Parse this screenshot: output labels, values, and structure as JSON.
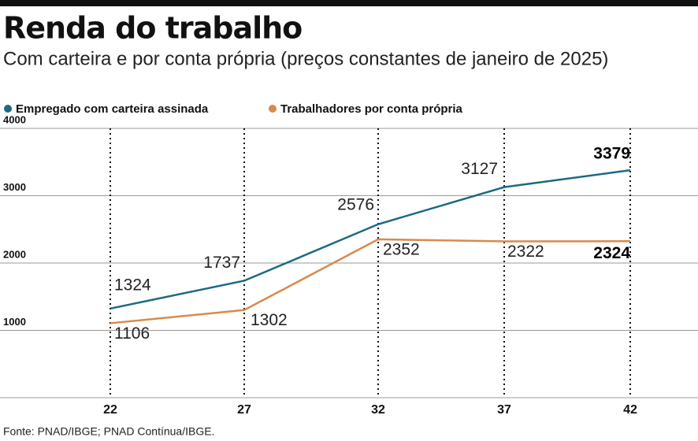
{
  "chart_data": {
    "type": "line",
    "title": "Renda do trabalho",
    "subtitle": "Com carteira e por conta própria (preços constantes de janeiro de 2025)",
    "categories": [
      "22",
      "27",
      "32",
      "37",
      "42"
    ],
    "series": [
      {
        "name": "Empregado com carteira assinada",
        "color": "#1b6a84",
        "values": [
          1324,
          1737,
          2576,
          3127,
          3379
        ]
      },
      {
        "name": "Trabalhadores por conta própria",
        "color": "#d88a4c",
        "values": [
          1106,
          1302,
          2352,
          2322,
          2324
        ]
      }
    ],
    "ylim": [
      0,
      4000
    ],
    "yticks": [
      1000,
      2000,
      3000,
      4000
    ],
    "grid": true,
    "source": "Fonte: PNAD/IBGE; PNAD Contínua/IBGE."
  }
}
